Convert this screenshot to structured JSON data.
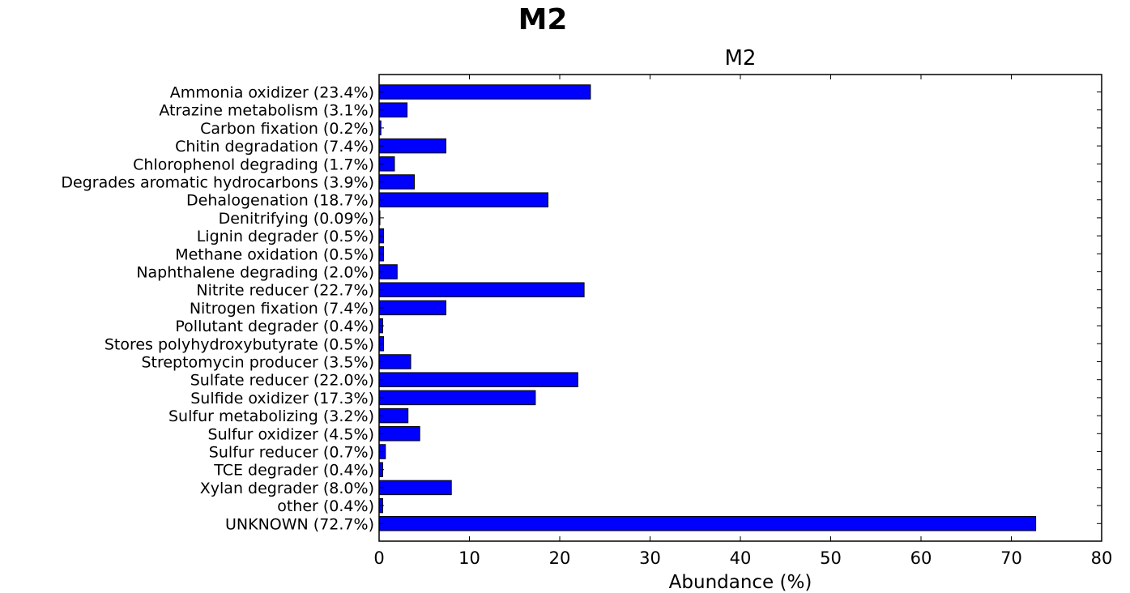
{
  "page_title": "M2",
  "chart_data": {
    "type": "bar",
    "orientation": "horizontal",
    "title": "M2",
    "xlabel": "Abundance (%)",
    "ylabel": "",
    "xlim": [
      0,
      80
    ],
    "xticks": [
      0,
      10,
      20,
      30,
      40,
      50,
      60,
      70,
      80
    ],
    "grid": false,
    "bar_color": "#0000ff",
    "categories": [
      "Ammonia oxidizer (23.4%)",
      "Atrazine metabolism (3.1%)",
      "Carbon fixation (0.2%)",
      "Chitin degradation (7.4%)",
      "Chlorophenol degrading (1.7%)",
      "Degrades aromatic hydrocarbons (3.9%)",
      "Dehalogenation (18.7%)",
      "Denitrifying (0.09%)",
      "Lignin degrader (0.5%)",
      "Methane oxidation (0.5%)",
      "Naphthalene degrading (2.0%)",
      "Nitrite reducer (22.7%)",
      "Nitrogen fixation (7.4%)",
      "Pollutant degrader (0.4%)",
      "Stores polyhydroxybutyrate (0.5%)",
      "Streptomycin producer (3.5%)",
      "Sulfate reducer (22.0%)",
      "Sulfide oxidizer (17.3%)",
      "Sulfur metabolizing (3.2%)",
      "Sulfur oxidizer (4.5%)",
      "Sulfur reducer (0.7%)",
      "TCE degrader (0.4%)",
      "Xylan degrader (8.0%)",
      "other (0.4%)",
      "UNKNOWN (72.7%)"
    ],
    "values": [
      23.4,
      3.1,
      0.2,
      7.4,
      1.7,
      3.9,
      18.7,
      0.09,
      0.5,
      0.5,
      2.0,
      22.7,
      7.4,
      0.4,
      0.5,
      3.5,
      22.0,
      17.3,
      3.2,
      4.5,
      0.7,
      0.4,
      8.0,
      0.4,
      72.7
    ]
  }
}
